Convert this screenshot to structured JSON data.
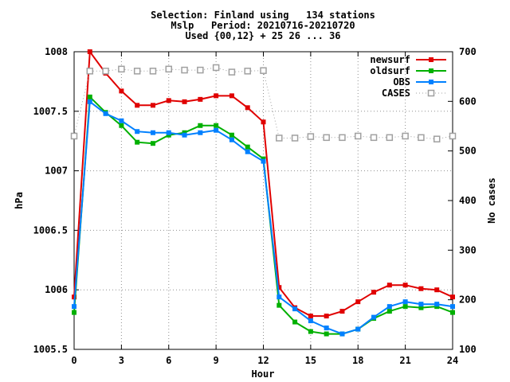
{
  "chart_data": {
    "type": "line",
    "title_lines": [
      "Selection: Finland using   134 stations",
      "Mslp   Period: 20210716-20210720",
      "Used {00,12} + 25 26 ... 36"
    ],
    "xlabel": "Hour",
    "ylabel": "hPa",
    "y2label": "No cases",
    "xlim": [
      0,
      24
    ],
    "ylim": [
      1005.5,
      1008
    ],
    "y2lim": [
      100,
      700
    ],
    "xticks": [
      0,
      3,
      6,
      9,
      12,
      15,
      18,
      21,
      24
    ],
    "yticks": [
      1005.5,
      1006,
      1006.5,
      1007,
      1007.5,
      1008
    ],
    "ytick_labels": [
      "1005.5",
      "1006",
      "1006.5",
      "1007",
      "1007.5",
      "1008"
    ],
    "y2ticks": [
      100,
      200,
      300,
      400,
      500,
      600,
      700
    ],
    "grid": true,
    "legend_position": "top-right",
    "x": [
      0,
      1,
      2,
      3,
      4,
      5,
      6,
      7,
      8,
      9,
      10,
      11,
      12,
      13,
      14,
      15,
      16,
      17,
      18,
      19,
      20,
      21,
      22,
      23,
      24
    ],
    "series": [
      {
        "name": "newsurf",
        "color": "#e00000",
        "marker": "square-filled",
        "values": [
          1005.94,
          1008.0,
          1007.82,
          1007.67,
          1007.55,
          1007.55,
          1007.59,
          1007.58,
          1007.6,
          1007.63,
          1007.63,
          1007.53,
          1007.41,
          1006.02,
          1005.85,
          1005.78,
          1005.78,
          1005.82,
          1005.9,
          1005.98,
          1006.04,
          1006.04,
          1006.01,
          1006.0,
          1005.94
        ]
      },
      {
        "name": "oldsurf",
        "color": "#00b000",
        "marker": "square-filled",
        "values": [
          1005.81,
          1007.62,
          1007.49,
          1007.38,
          1007.24,
          1007.23,
          1007.3,
          1007.32,
          1007.38,
          1007.38,
          1007.3,
          1007.2,
          1007.1,
          1005.87,
          1005.73,
          1005.65,
          1005.63,
          1005.63,
          1005.67,
          1005.76,
          1005.82,
          1005.86,
          1005.85,
          1005.86,
          1005.81
        ]
      },
      {
        "name": "OBS",
        "color": "#0080ff",
        "marker": "square-filled",
        "values": [
          1005.86,
          1007.58,
          1007.48,
          1007.42,
          1007.33,
          1007.32,
          1007.32,
          1007.3,
          1007.32,
          1007.34,
          1007.26,
          1007.16,
          1007.08,
          1005.94,
          1005.84,
          1005.74,
          1005.68,
          1005.63,
          1005.67,
          1005.77,
          1005.86,
          1005.9,
          1005.88,
          1005.88,
          1005.86
        ]
      },
      {
        "name": "CASES",
        "color": "#a0a0a0",
        "marker": "square-open",
        "axis": "right",
        "x": [
          0,
          1,
          2,
          3,
          4,
          5,
          6,
          7,
          8,
          9,
          10,
          11,
          12,
          13,
          14,
          15,
          16,
          17,
          18,
          19,
          20,
          21,
          22,
          23,
          24
        ],
        "values": [
          530,
          661,
          661,
          665,
          661,
          661,
          665,
          663,
          663,
          668,
          659,
          661,
          662,
          526,
          526,
          529,
          527,
          527,
          530,
          527,
          527,
          530,
          527,
          524,
          530
        ]
      }
    ]
  }
}
